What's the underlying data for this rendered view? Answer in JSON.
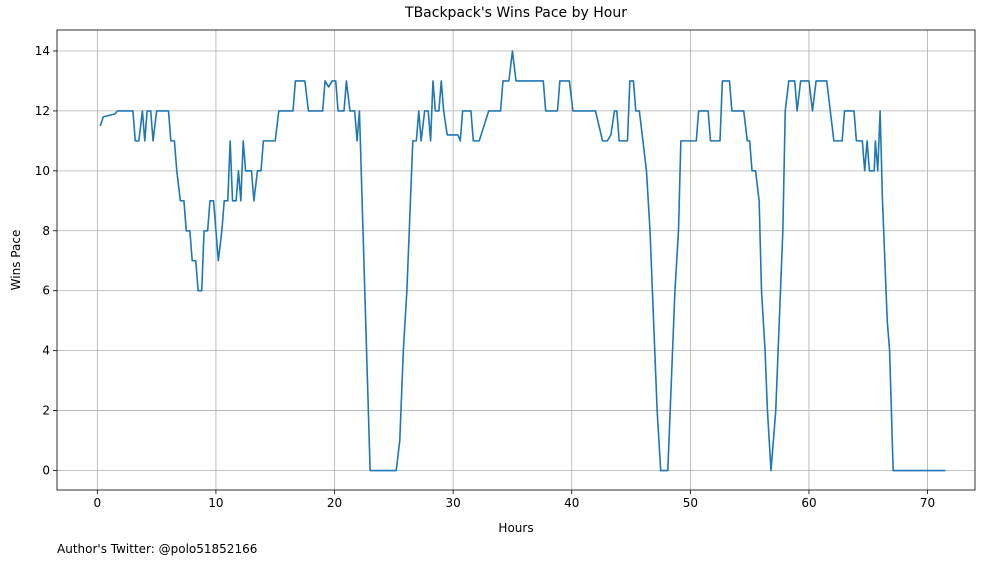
{
  "chart_data": {
    "type": "line",
    "title": "TBackpack's Wins Pace by Hour",
    "xlabel": "Hours",
    "ylabel": "Wins Pace",
    "footnote": "Author's Twitter: @polo51852166",
    "color": "#1f77b4",
    "grid": true,
    "xlim": [
      -3.4,
      74.0
    ],
    "ylim": [
      -0.65,
      14.7
    ],
    "xticks": [
      0,
      10,
      20,
      30,
      40,
      50,
      60,
      70
    ],
    "yticks": [
      0,
      2,
      4,
      6,
      8,
      10,
      12,
      14
    ],
    "x": [
      0.25,
      0.5,
      1,
      1.5,
      1.7,
      2,
      2.5,
      3,
      3.2,
      3.5,
      3.8,
      4,
      4.2,
      4.5,
      4.7,
      5,
      5.5,
      6,
      6.2,
      6.5,
      6.7,
      7,
      7.3,
      7.5,
      7.8,
      8,
      8.3,
      8.5,
      8.8,
      9,
      9.3,
      9.5,
      9.8,
      10,
      10.2,
      10.5,
      10.7,
      11,
      11.2,
      11.4,
      11.7,
      11.9,
      12.1,
      12.3,
      12.5,
      13,
      13.2,
      13.5,
      13.8,
      14,
      15,
      15.3,
      16,
      16.5,
      16.7,
      17.5,
      17.8,
      19,
      19.2,
      19.5,
      19.8,
      20.1,
      20.3,
      20.8,
      21,
      21.3,
      21.7,
      21.9,
      22.1,
      22.4,
      22.7,
      23,
      24,
      25.2,
      25.5,
      25.8,
      26.1,
      26.4,
      26.6,
      26.9,
      27.1,
      27.3,
      27.6,
      27.9,
      28.1,
      28.3,
      28.5,
      28.8,
      29,
      29.2,
      29.5,
      30,
      30.4,
      30.6,
      30.8,
      31.5,
      31.7,
      32.2,
      33,
      34,
      34.2,
      34.7,
      35,
      35.3,
      36,
      37,
      37.6,
      37.8,
      38.5,
      38.8,
      39,
      39.8,
      40.1,
      41,
      42,
      42.6,
      43,
      43.3,
      43.6,
      43.8,
      44,
      44.7,
      44.9,
      45.2,
      45.4,
      45.7,
      46,
      46.3,
      46.6,
      46.9,
      47.2,
      47.5,
      48.1,
      48.4,
      48.7,
      49,
      49.2,
      50,
      50.5,
      50.7,
      51.5,
      51.7,
      52.5,
      52.7,
      53.3,
      53.5,
      54.5,
      54.8,
      55,
      55.2,
      55.5,
      55.8,
      56,
      56.3,
      56.5,
      56.8,
      57.2,
      57.5,
      57.8,
      58,
      58.3,
      58.8,
      59,
      59.3,
      60,
      60.3,
      60.6,
      61.5,
      61.8,
      62.1,
      62.8,
      63,
      63.8,
      64,
      64.5,
      64.7,
      64.9,
      65.1,
      65.5,
      65.6,
      65.8,
      66,
      66.2,
      66.3,
      66.6,
      66.8,
      67.1,
      68,
      71.5
    ],
    "values": [
      11.5,
      11.8,
      11.85,
      11.9,
      12,
      12,
      12,
      12,
      11,
      11,
      12,
      11,
      12,
      12,
      11,
      12,
      12,
      12,
      11,
      11,
      10,
      9,
      9,
      8,
      8,
      7,
      7,
      6,
      6,
      8,
      8,
      9,
      9,
      8,
      7,
      8,
      9,
      9,
      11,
      9,
      9,
      10,
      9,
      11,
      10,
      10,
      9,
      10,
      10,
      11,
      11,
      12,
      12,
      12,
      13,
      13,
      12,
      12,
      13,
      12.8,
      13,
      13,
      12,
      12,
      13,
      12,
      12,
      11,
      12,
      8,
      4,
      0,
      0,
      0,
      1,
      4,
      6,
      9,
      11,
      11,
      12,
      11,
      12,
      12,
      11,
      13,
      12,
      12,
      13,
      12,
      11.2,
      11.2,
      11.2,
      11,
      12,
      12,
      11,
      11,
      12,
      12,
      13,
      13,
      14,
      13,
      13,
      13,
      13,
      12,
      12,
      12,
      13,
      13,
      12,
      12,
      12,
      11,
      11,
      11.2,
      12,
      12,
      11,
      11,
      13,
      13,
      12,
      12,
      11,
      10,
      8,
      5,
      2,
      0,
      0,
      3,
      6,
      8,
      11,
      11,
      11,
      12,
      12,
      11,
      11,
      13,
      13,
      12,
      12,
      11,
      11,
      10,
      10,
      9,
      6,
      4,
      2,
      0,
      2,
      5,
      8,
      12,
      13,
      13,
      12,
      13,
      13,
      12,
      13,
      13,
      12,
      11,
      11,
      12,
      12,
      11,
      11,
      10,
      11,
      10,
      10,
      11,
      10,
      12,
      9,
      8,
      5,
      4,
      0,
      0,
      0
    ]
  }
}
